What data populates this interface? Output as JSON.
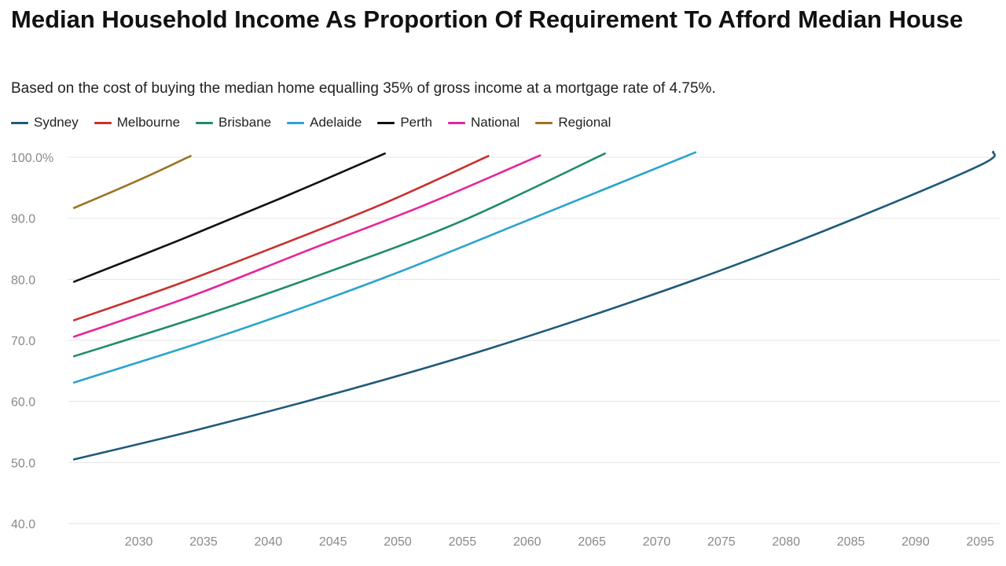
{
  "header": {
    "title": "Median Household Income As Proportion Of Requirement To Afford Median House",
    "subtitle": "Based on the cost of buying the median home equalling 35% of gross income at a mortgage rate of 4.75%."
  },
  "chart_data": {
    "type": "line",
    "title": "Median Household Income As Proportion Of Requirement To Afford Median House",
    "subtitle": "Based on the cost of buying the median home equalling 35% of gross income at a mortgage rate of 4.75%.",
    "xlabel": "",
    "ylabel": "",
    "xlim": [
      2024.5,
      2096.5
    ],
    "ylim": [
      40,
      100
    ],
    "x_ticks": [
      2030,
      2035,
      2040,
      2045,
      2050,
      2055,
      2060,
      2065,
      2070,
      2075,
      2080,
      2085,
      2090,
      2095
    ],
    "x_tick_labels": [
      "2030",
      "2035",
      "2040",
      "2045",
      "2050",
      "2055",
      "2060",
      "2065",
      "2070",
      "2075",
      "2080",
      "2085",
      "2090",
      "2095"
    ],
    "y_ticks": [
      40,
      50,
      60,
      70,
      80,
      90,
      100
    ],
    "y_tick_labels": [
      "40.0",
      "50.0",
      "60.0",
      "70.0",
      "80.0",
      "90.0",
      "100.0%"
    ],
    "grid": true,
    "legend_position": "top-left",
    "series": [
      {
        "name": "Sydney",
        "color": "#1f5a7a",
        "x": [
          2025,
          2035,
          2045,
          2055,
          2065,
          2075,
          2085,
          2095,
          2096
        ],
        "y": [
          50.5,
          55.6,
          61.2,
          67.3,
          74.1,
          81.5,
          89.7,
          98.7,
          100.9
        ]
      },
      {
        "name": "Melbourne",
        "color": "#c8312d",
        "x": [
          2025,
          2033,
          2041,
          2049,
          2057
        ],
        "y": [
          73.3,
          79.2,
          85.7,
          92.5,
          100.2
        ]
      },
      {
        "name": "Brisbane",
        "color": "#1e8c6b",
        "x": [
          2025,
          2035,
          2045,
          2055,
          2066
        ],
        "y": [
          67.4,
          74.1,
          81.5,
          89.6,
          100.6
        ]
      },
      {
        "name": "Adelaide",
        "color": "#2aa3cf",
        "x": [
          2025,
          2037,
          2049,
          2061,
          2073
        ],
        "y": [
          63.1,
          71.2,
          80.3,
          90.5,
          100.8
        ]
      },
      {
        "name": "Perth",
        "color": "#111111",
        "x": [
          2025,
          2033,
          2041,
          2049
        ],
        "y": [
          79.6,
          86.3,
          93.3,
          100.6
        ]
      },
      {
        "name": "National",
        "color": "#e6249a",
        "x": [
          2025,
          2034,
          2043,
          2052,
          2061
        ],
        "y": [
          70.6,
          77.2,
          84.7,
          92.1,
          100.3
        ]
      },
      {
        "name": "Regional",
        "color": "#9b7425",
        "x": [
          2025,
          2028,
          2031,
          2034
        ],
        "y": [
          91.7,
          94.4,
          97.2,
          100.2
        ]
      }
    ]
  }
}
